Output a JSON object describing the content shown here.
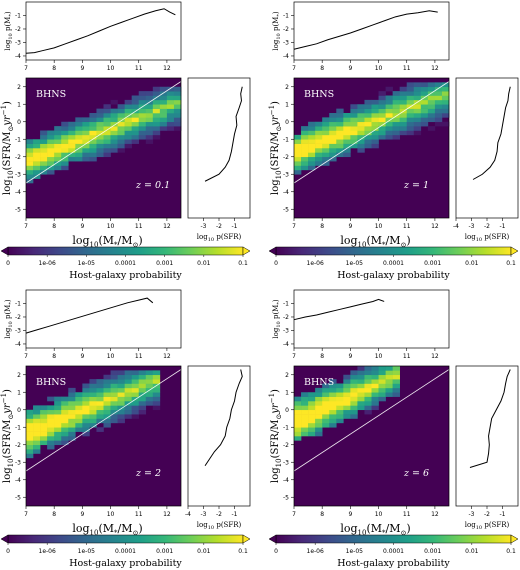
{
  "chart_data": [
    {
      "type": "heatmap",
      "label": "BHNS",
      "redshift": "z = 0.1",
      "xlabel": "log10(M*/M⊙)",
      "ylabel": "log10(SFR/M⊙yr⁻¹)",
      "xlim": [
        7,
        12.5
      ],
      "ylim": [
        -5.5,
        2.5
      ],
      "xticks": [
        7,
        8,
        9,
        10,
        11,
        12
      ],
      "yticks": [
        -5,
        -4,
        -3,
        -2,
        -1,
        0,
        1,
        2
      ],
      "top_marginal": {
        "xlabel": "",
        "ylabel": "log10 p(M*)",
        "ylim": [
          -4.3,
          0
        ],
        "yticks": [
          -4,
          -3,
          -2,
          -1
        ],
        "x": [
          7.0,
          7.3,
          7.6,
          8.0,
          8.4,
          8.8,
          9.2,
          9.6,
          10.0,
          10.4,
          10.8,
          11.2,
          11.6,
          11.9,
          12.1,
          12.3
        ],
        "y": [
          -3.8,
          -3.75,
          -3.6,
          -3.4,
          -3.1,
          -2.8,
          -2.5,
          -2.15,
          -1.8,
          -1.5,
          -1.2,
          -0.9,
          -0.65,
          -0.5,
          -0.75,
          -0.95
        ]
      },
      "side_marginal": {
        "xlabel": "log10 p(SFR)",
        "xlim": [
          -4,
          0
        ],
        "xticks": [
          -3,
          -2,
          -1
        ],
        "y": [
          2.0,
          1.6,
          1.2,
          0.8,
          0.3,
          -0.2,
          -0.7,
          -1.2,
          -1.7,
          -2.2,
          -2.6,
          -3.0,
          -3.4
        ],
        "x": [
          -0.5,
          -0.6,
          -0.55,
          -0.7,
          -0.9,
          -0.85,
          -1.0,
          -1.1,
          -1.2,
          -1.35,
          -1.6,
          -2.0,
          -2.9
        ]
      },
      "diagonal": {
        "x": [
          7,
          12.5
        ],
        "y": [
          -3.5,
          2.3
        ]
      },
      "grid": {
        "x0": 7,
        "dx": 0.25,
        "y0": -4.0,
        "dy": 0.25,
        "cols": 22,
        "rows": 24,
        "centre": {
          "a": 0.62,
          "b": -6.6
        },
        "width0": 1.15,
        "width1": 1.6,
        "lo_start": 0.48,
        "lo_end": -1.02,
        "hi_start": 0.38,
        "hi_end": -0.92,
        "seed": 11
      }
    },
    {
      "type": "heatmap",
      "label": "BHNS",
      "redshift": "z = 1",
      "xlabel": "log10(M*/M⊙)",
      "ylabel": "log10(SFR/M⊙yr⁻¹)",
      "xlim": [
        7,
        12.5
      ],
      "ylim": [
        -5.5,
        2.5
      ],
      "xticks": [
        7,
        8,
        9,
        10,
        11,
        12
      ],
      "yticks": [
        -5,
        -4,
        -3,
        -2,
        -1,
        0,
        1,
        2
      ],
      "top_marginal": {
        "xlabel": "",
        "ylabel": "log10 p(M*)",
        "ylim": [
          -4.3,
          0
        ],
        "yticks": [
          -4,
          -3,
          -2,
          -1
        ],
        "x": [
          7.0,
          7.4,
          7.8,
          8.2,
          8.6,
          9.0,
          9.4,
          9.8,
          10.2,
          10.6,
          11.0,
          11.4,
          11.8,
          12.1
        ],
        "y": [
          -3.5,
          -3.3,
          -3.1,
          -2.8,
          -2.55,
          -2.3,
          -2.0,
          -1.7,
          -1.4,
          -1.1,
          -0.9,
          -0.8,
          -0.65,
          -0.75
        ]
      },
      "side_marginal": {
        "xlabel": "log10 p(SFR)",
        "xlim": [
          -4,
          0
        ],
        "xticks": [
          -4,
          -3,
          -2,
          -1
        ],
        "y": [
          2.0,
          1.6,
          1.2,
          0.8,
          0.3,
          -0.2,
          -0.7,
          -1.2,
          -1.7,
          -2.2,
          -2.6,
          -3.0,
          -3.3
        ],
        "x": [
          -0.5,
          -0.6,
          -0.65,
          -0.8,
          -0.9,
          -1.0,
          -1.1,
          -1.3,
          -1.35,
          -1.5,
          -1.8,
          -2.3,
          -2.9
        ]
      },
      "diagonal": {
        "x": [
          7,
          12.5
        ],
        "y": [
          -3.5,
          2.3
        ]
      },
      "grid": {
        "x0": 7,
        "dx": 0.25,
        "y0": -3.75,
        "dy": 0.25,
        "cols": 22,
        "rows": 24,
        "centre": {
          "a": 0.62,
          "b": -6.1
        },
        "width0": 1.2,
        "width1": 1.65,
        "lo_start": 0.55,
        "lo_end": -1.0,
        "hi_start": 0.45,
        "hi_end": -0.9,
        "seed": 23
      }
    },
    {
      "type": "heatmap",
      "label": "BHNS",
      "redshift": "z = 2",
      "xlabel": "log10(M*/M⊙)",
      "ylabel": "log10(SFR/M⊙yr⁻¹)",
      "xlim": [
        7,
        12.5
      ],
      "ylim": [
        -5.5,
        2.5
      ],
      "xticks": [
        7,
        8,
        9,
        10,
        11,
        12
      ],
      "yticks": [
        -5,
        -4,
        -3,
        -2,
        -1,
        0,
        1,
        2
      ],
      "top_marginal": {
        "xlabel": "",
        "ylabel": "log10 p(M*)",
        "ylim": [
          -4.3,
          0
        ],
        "yticks": [
          -4,
          -3,
          -2,
          -1
        ],
        "x": [
          7.0,
          7.4,
          7.8,
          8.2,
          8.6,
          9.0,
          9.4,
          9.8,
          10.2,
          10.6,
          11.0,
          11.3,
          11.5
        ],
        "y": [
          -3.2,
          -2.95,
          -2.7,
          -2.45,
          -2.2,
          -1.95,
          -1.7,
          -1.45,
          -1.2,
          -0.95,
          -0.75,
          -0.6,
          -0.95
        ]
      },
      "side_marginal": {
        "xlabel": "log10 p(SFR)",
        "xlim": [
          -4,
          0
        ],
        "xticks": [
          -4,
          -3,
          -2,
          -1
        ],
        "y": [
          2.3,
          1.9,
          1.5,
          1.0,
          0.5,
          0.0,
          -0.5,
          -1.0,
          -1.5,
          -2.0,
          -2.4,
          -2.8,
          -3.2
        ],
        "x": [
          -0.6,
          -0.5,
          -0.7,
          -0.9,
          -1.0,
          -1.2,
          -1.3,
          -1.5,
          -1.6,
          -1.9,
          -2.3,
          -2.6,
          -2.9
        ]
      },
      "diagonal": {
        "x": [
          7,
          12.5
        ],
        "y": [
          -3.5,
          2.3
        ]
      },
      "grid": {
        "x0": 7,
        "dx": 0.25,
        "y0": -3.25,
        "dy": 0.25,
        "cols": 19,
        "rows": 22,
        "centre": {
          "a": 0.65,
          "b": -5.9
        },
        "width0": 1.3,
        "width1": 1.55,
        "lo_start": 0.6,
        "lo_end": -0.9,
        "hi_start": 0.5,
        "hi_end": -0.8,
        "seed": 37
      }
    },
    {
      "type": "heatmap",
      "label": "BHNS",
      "redshift": "z = 6",
      "xlabel": "log10(M*/M⊙)",
      "ylabel": "log10(SFR/M⊙yr⁻¹)",
      "xlim": [
        7,
        12.5
      ],
      "ylim": [
        -5.5,
        2.5
      ],
      "xticks": [
        7,
        8,
        9,
        10,
        11,
        12
      ],
      "yticks": [
        -5,
        -4,
        -3,
        -2,
        -1,
        0,
        1,
        2
      ],
      "top_marginal": {
        "xlabel": "",
        "ylabel": "log10 p(M*)",
        "ylim": [
          -4.3,
          0
        ],
        "yticks": [
          -4,
          -3,
          -2,
          -1
        ],
        "x": [
          7.0,
          7.4,
          7.8,
          8.2,
          8.6,
          9.0,
          9.4,
          9.8,
          10.0,
          10.2
        ],
        "y": [
          -2.2,
          -2.0,
          -1.85,
          -1.65,
          -1.45,
          -1.25,
          -1.05,
          -0.85,
          -0.7,
          -0.85
        ]
      },
      "side_marginal": {
        "xlabel": "log10 p(SFR)",
        "xlim": [
          -4,
          0
        ],
        "xticks": [
          -3,
          -2,
          -1
        ],
        "y": [
          2.3,
          1.9,
          1.5,
          1.0,
          0.5,
          0.0,
          -0.5,
          -1.0,
          -1.5,
          -2.0,
          -2.5,
          -3.0,
          -3.3
        ],
        "x": [
          -0.5,
          -0.7,
          -0.8,
          -0.9,
          -1.1,
          -1.4,
          -1.7,
          -1.8,
          -1.9,
          -1.85,
          -1.9,
          -2.0,
          -3.1
        ]
      },
      "diagonal": {
        "x": [
          7,
          12.5
        ],
        "y": [
          -3.5,
          2.3
        ]
      },
      "grid": {
        "x0": 7,
        "dx": 0.25,
        "y0": -3.0,
        "dy": 0.25,
        "cols": 15,
        "rows": 22,
        "centre": {
          "a": 0.75,
          "b": -6.0
        },
        "width0": 1.3,
        "width1": 1.3,
        "lo_start": 0.7,
        "lo_end": -0.7,
        "hi_start": 0.6,
        "hi_end": -0.6,
        "seed": 51
      }
    }
  ],
  "colorbar": {
    "label": "Host-galaxy probability",
    "ticks": [
      "0",
      "1e-06",
      "1e-05",
      "0.0001",
      "0.001",
      "0.01",
      "0.1"
    ],
    "colors": [
      "#440154",
      "#482878",
      "#3e4989",
      "#31688e",
      "#26828e",
      "#1f9e89",
      "#35b779",
      "#6ece58",
      "#b5de2b",
      "#fde725"
    ]
  }
}
